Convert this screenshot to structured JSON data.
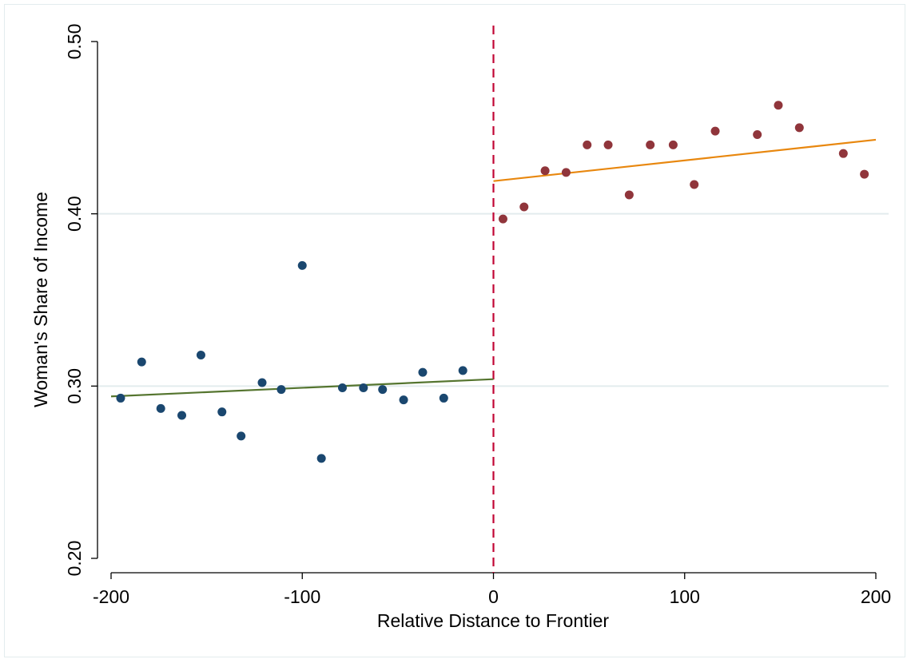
{
  "chart_data": {
    "type": "scatter",
    "xlabel": "Relative Distance to Frontier",
    "ylabel": "Woman's Share of Income",
    "xlim": [
      -200,
      200
    ],
    "ylim": [
      0.2,
      0.5
    ],
    "x_ticks": [
      -200,
      -100,
      0,
      100,
      200
    ],
    "x_tick_labels": [
      "-200",
      "-100",
      "0",
      "100",
      "200"
    ],
    "y_ticks": [
      0.2,
      0.3,
      0.4,
      0.5
    ],
    "y_tick_labels": [
      "0.20",
      "0.30",
      "0.40",
      "0.50"
    ],
    "grid": "horizontal at 0.30 and 0.40",
    "threshold_x": 0,
    "series": [
      {
        "color": "#1a476f",
        "x": [
          -195,
          -184,
          -174,
          -163,
          -153,
          -142,
          -132,
          -121,
          -111,
          -100,
          -90,
          -79,
          -68,
          -58,
          -47,
          -37,
          -26,
          -16
        ],
        "y": [
          0.293,
          0.314,
          0.287,
          0.283,
          0.318,
          0.285,
          0.271,
          0.302,
          0.298,
          0.37,
          0.258,
          0.299,
          0.299,
          0.298,
          0.292,
          0.308,
          0.293,
          0.309
        ]
      },
      {
        "color": "#90353b",
        "x": [
          5,
          16,
          27,
          38,
          49,
          60,
          71,
          82,
          94,
          105,
          116,
          138,
          149,
          160,
          183,
          194
        ],
        "y": [
          0.397,
          0.404,
          0.425,
          0.424,
          0.44,
          0.44,
          0.411,
          0.44,
          0.44,
          0.417,
          0.448,
          0.446,
          0.463,
          0.45,
          0.435,
          0.423
        ]
      }
    ],
    "fit_lines": [
      {
        "color": "#55752f",
        "x": [
          -200,
          0
        ],
        "y": [
          0.294,
          0.304
        ]
      },
      {
        "color": "#e8870e",
        "x": [
          0,
          200
        ],
        "y": [
          0.419,
          0.443
        ]
      }
    ],
    "threshold_color": "#c10534",
    "grid_color": "#e3ecee"
  }
}
